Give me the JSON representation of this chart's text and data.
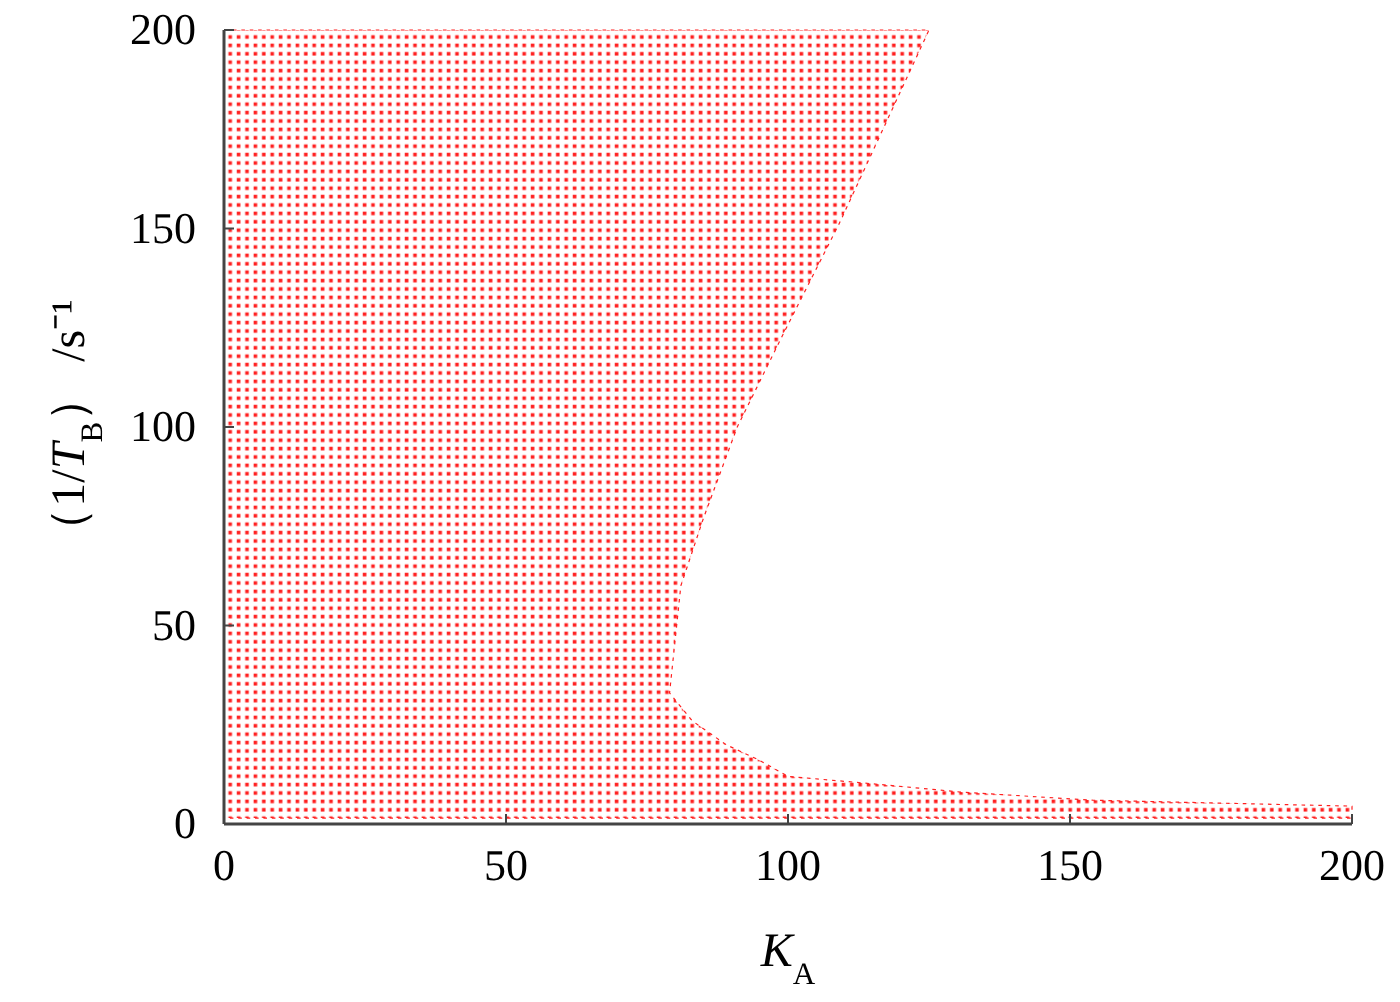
{
  "chart_data": {
    "type": "area",
    "orientation": "horizontal",
    "xlabel": "K$_{A}$",
    "ylabel": "（1/T$_{B}$） /s⁻¹",
    "xlim": [
      0,
      200
    ],
    "ylim": [
      0,
      200
    ],
    "xticks": [
      0,
      50,
      100,
      150,
      200
    ],
    "yticks": [
      0,
      50,
      100,
      150,
      200
    ],
    "grid": false,
    "marker": "none",
    "series": [
      {
        "color": "#ff2020",
        "x": [
          1.5,
          4.5,
          6,
          8,
          10,
          12,
          16,
          20,
          26,
          33,
          60,
          77,
          100,
          123,
          151,
          200
        ],
        "values": [
          200,
          200,
          154,
          131,
          116,
          100,
          95,
          89,
          83,
          79,
          81,
          85,
          91,
          99,
          109,
          125
        ]
      }
    ]
  }
}
